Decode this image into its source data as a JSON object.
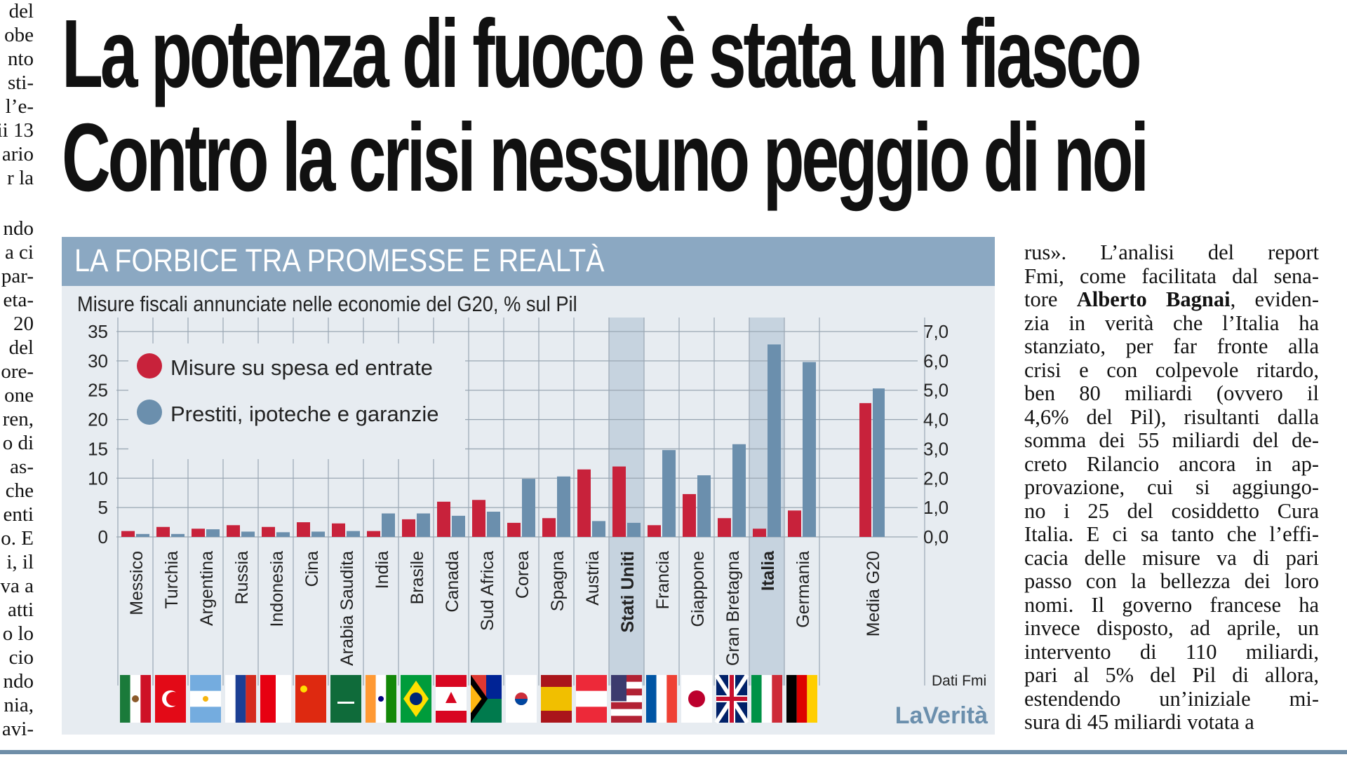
{
  "headline": {
    "line1": "La potenza di fuoco è stata un fiasco",
    "line2": "Contro la crisi nessuno peggio di noi"
  },
  "left_column_fragments": [
    "del",
    "obe",
    "nto",
    "sti-",
    "l’e-",
    "ii 13",
    "ario",
    "r la",
    "ndo",
    "a ci",
    "par-",
    "eta-",
    "20",
    "del",
    "ore-",
    "one",
    "ren,",
    "o di",
    "as-",
    "che",
    "enti",
    "o. E",
    "i, il",
    "va a",
    "atti",
    "o lo",
    "cio",
    "ndo",
    "nia,",
    "avi-"
  ],
  "right_column_lines": [
    "rus». L’analisi del report",
    "Fmi, come facilitata dal sena-",
    "tore Alberto Bagnai, eviden-",
    "zia in verità che l’Italia ha",
    "stanziato, per far fronte alla",
    "crisi e con colpevole ritardo,",
    "ben 80 miliardi (ovvero il",
    "4,6% del Pil), risultanti dalla",
    "somma dei 55 miliardi del de-",
    "creto Rilancio ancora in ap-",
    "provazione, cui si aggiungo-",
    "no i 25 del cosiddetto Cura",
    "Italia. E ci sa tanto che l’effi-",
    "cacia delle misure va di pari",
    "passo con la bellezza dei loro",
    "nomi. Il governo francese ha",
    "invece disposto, ad aprile, un",
    "intervento di 110 miliardi,",
    "pari al 5% del Pil di allora,",
    "estendendo un’iniziale mi-",
    "sura di 45 miliardi votata a"
  ],
  "colors": {
    "red": "#c8223b",
    "blue": "#6b8fad",
    "panel_bg": "#e7ecf1",
    "title_bar": "#8ba8c2",
    "highlight": "#c6d3df"
  },
  "chart_data": {
    "type": "bar",
    "title": "LA FORBICE TRA PROMESSE E REALTÀ",
    "subtitle": "Misure fiscali annunciate nelle economie del G20, % sul Pil",
    "source": "Dati Fmi",
    "brand": "LaVerità",
    "categories": [
      "Messico",
      "Turchia",
      "Argentina",
      "Russia",
      "Indonesia",
      "Cina",
      "Arabia Saudita",
      "India",
      "Brasile",
      "Canada",
      "Sud Africa",
      "Corea",
      "Spagna",
      "Austria",
      "Stati Uniti",
      "Francia",
      "Giappone",
      "Gran Bretagna",
      "Italia",
      "Germania",
      "Media G20"
    ],
    "highlighted": [
      "Stati Uniti",
      "Italia"
    ],
    "series": [
      {
        "name": "Misure su spesa ed entrate",
        "values": [
          1,
          1.7,
          1.4,
          2,
          1.7,
          2.5,
          2.3,
          1,
          3,
          6,
          6.3,
          2.4,
          3.2,
          11.5,
          12,
          2,
          7.3,
          3.2,
          1.4,
          4.5,
          22.8
        ]
      },
      {
        "name": "Prestiti, ipoteche e garanzie",
        "values": [
          0.5,
          0.5,
          1.3,
          0.9,
          0.8,
          0.9,
          1,
          4,
          4,
          3.6,
          4.3,
          9.9,
          10.3,
          2.7,
          2.4,
          14.8,
          10.5,
          15.8,
          32.8,
          29.8,
          25.3
        ]
      }
    ],
    "y_left": {
      "min": 0,
      "max": 35,
      "ticks": [
        "0",
        "5",
        "10",
        "15",
        "20",
        "25",
        "30",
        "35"
      ]
    },
    "y_right": {
      "min": 0,
      "max": 7,
      "ticks": [
        "0,0",
        "1,0",
        "2,0",
        "3,0",
        "4,0",
        "5,0",
        "6,0",
        "7,0"
      ]
    }
  }
}
